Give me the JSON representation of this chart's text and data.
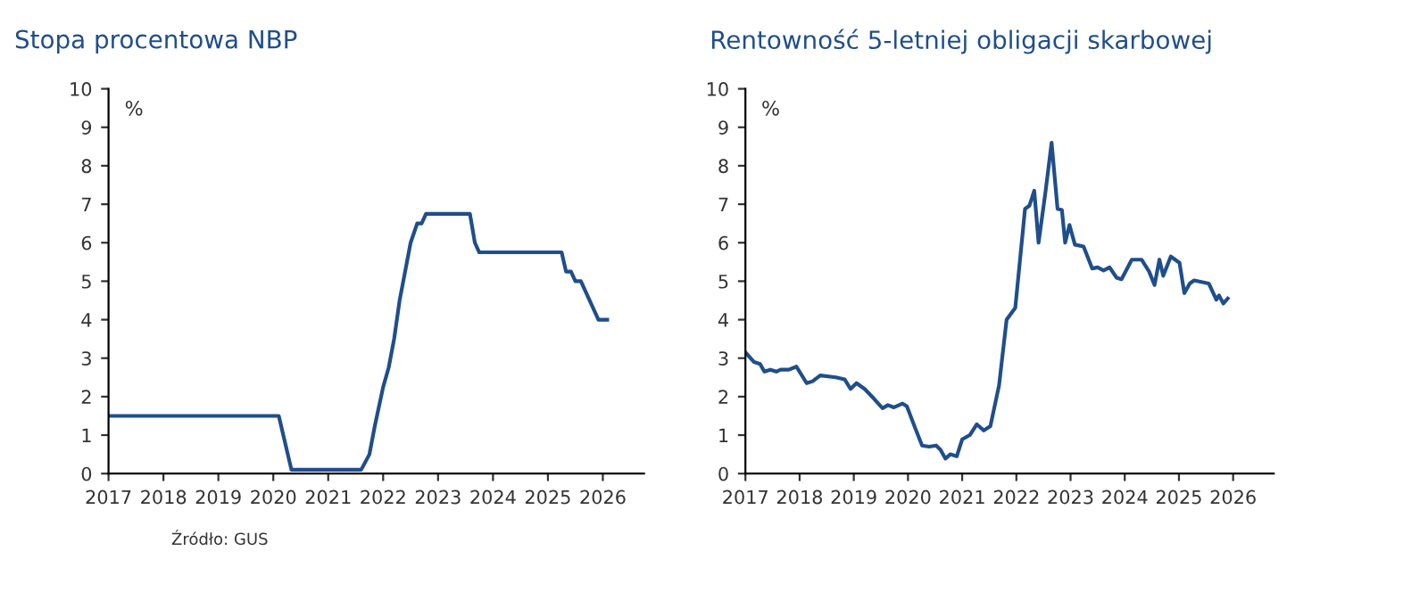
{
  "chart_data": [
    {
      "type": "line",
      "title": "Stopa procentowa NBP",
      "ylabel": "%",
      "xlim": [
        2017,
        2026.75
      ],
      "xticks": [
        2017,
        2018,
        2019,
        2020,
        2021,
        2022,
        2023,
        2024,
        2025,
        2026
      ],
      "ylim": [
        0,
        10
      ],
      "yticks": [
        0,
        1,
        2,
        3,
        4,
        5,
        6,
        7,
        8,
        9,
        10
      ],
      "grid": false,
      "legend": false,
      "series": [
        {
          "color": "#1f4e8c",
          "x": [
            2017,
            2020.1,
            2020.33,
            2021.6,
            2021.75,
            2021.85,
            2022.0,
            2022.1,
            2022.2,
            2022.3,
            2022.4,
            2022.5,
            2022.62,
            2022.7,
            2022.78,
            2023.58,
            2023.67,
            2023.75,
            2025.25,
            2025.33,
            2025.42,
            2025.5,
            2025.6,
            2025.92,
            2026.08
          ],
          "values": [
            1.5,
            1.5,
            0.1,
            0.1,
            0.5,
            1.25,
            2.25,
            2.75,
            3.5,
            4.5,
            5.25,
            6.0,
            6.5,
            6.5,
            6.75,
            6.75,
            6.0,
            5.75,
            5.75,
            5.25,
            5.25,
            5.0,
            5.0,
            4.0,
            4.0
          ]
        }
      ]
    },
    {
      "type": "line",
      "title": "Rentowność 5-letniej obligacji skarbowej",
      "ylabel": "%",
      "xlim": [
        2017,
        2026.75
      ],
      "xticks": [
        2017,
        2018,
        2019,
        2020,
        2021,
        2022,
        2023,
        2024,
        2025,
        2026
      ],
      "ylim": [
        0,
        10
      ],
      "yticks": [
        0,
        1,
        2,
        3,
        4,
        5,
        6,
        7,
        8,
        9,
        10
      ],
      "grid": false,
      "legend": false,
      "annotations": [
        "Źródło: GUS"
      ],
      "series": [
        {
          "color": "#1f4e8c",
          "x": [
            2017,
            2017.16,
            2017.27,
            2017.35,
            2017.46,
            2017.57,
            2017.65,
            2017.8,
            2017.94,
            2018.13,
            2018.24,
            2018.38,
            2018.67,
            2018.83,
            2018.94,
            2019.05,
            2019.2,
            2019.37,
            2019.53,
            2019.63,
            2019.74,
            2019.9,
            2019.98,
            2020.12,
            2020.26,
            2020.39,
            2020.52,
            2020.6,
            2020.69,
            2020.78,
            2020.9,
            2021.0,
            2021.14,
            2021.27,
            2021.4,
            2021.52,
            2021.68,
            2021.82,
            2021.98,
            2022.16,
            2022.24,
            2022.33,
            2022.41,
            2022.54,
            2022.65,
            2022.76,
            2022.84,
            2022.9,
            2022.98,
            2023.08,
            2023.24,
            2023.4,
            2023.5,
            2023.61,
            2023.72,
            2023.85,
            2023.94,
            2024.13,
            2024.31,
            2024.45,
            2024.55,
            2024.64,
            2024.71,
            2024.85,
            2025.01,
            2025.1,
            2025.2,
            2025.28,
            2025.55,
            2025.69,
            2025.74,
            2025.82,
            2025.9
          ],
          "values": [
            3.15,
            2.9,
            2.85,
            2.65,
            2.7,
            2.65,
            2.7,
            2.7,
            2.78,
            2.35,
            2.4,
            2.55,
            2.5,
            2.45,
            2.2,
            2.35,
            2.2,
            1.95,
            1.7,
            1.78,
            1.72,
            1.82,
            1.75,
            1.23,
            0.73,
            0.7,
            0.73,
            0.62,
            0.39,
            0.5,
            0.45,
            0.89,
            1.0,
            1.28,
            1.12,
            1.23,
            2.29,
            4.0,
            4.31,
            6.88,
            6.96,
            7.35,
            6.0,
            7.35,
            8.6,
            6.88,
            6.85,
            6.0,
            6.46,
            5.95,
            5.9,
            5.33,
            5.36,
            5.28,
            5.36,
            5.09,
            5.05,
            5.56,
            5.56,
            5.25,
            4.9,
            5.56,
            5.14,
            5.64,
            5.48,
            4.69,
            4.94,
            5.02,
            4.94,
            4.52,
            4.63,
            4.42,
            4.55
          ]
        }
      ]
    }
  ]
}
